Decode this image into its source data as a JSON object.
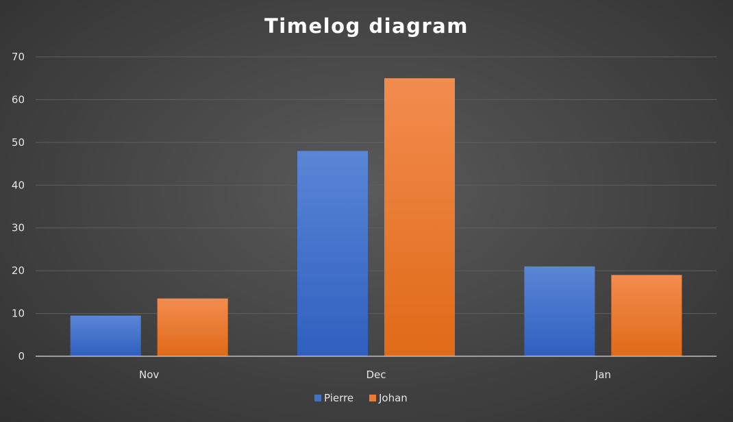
{
  "chart_data": {
    "type": "bar",
    "title": "Timelog diagram",
    "categories": [
      "Nov",
      "Dec",
      "Jan"
    ],
    "series": [
      {
        "name": "Pierre",
        "values": [
          9.5,
          48,
          21
        ],
        "color": "#4472c4"
      },
      {
        "name": "Johan",
        "values": [
          13.5,
          65,
          19
        ],
        "color": "#ed7d31"
      }
    ],
    "y_ticks": [
      "0",
      "10",
      "20",
      "30",
      "40",
      "50",
      "60",
      "70"
    ],
    "ylim": [
      0,
      70
    ],
    "xlabel": "",
    "ylabel": "",
    "grid": true,
    "legend_position": "bottom"
  }
}
